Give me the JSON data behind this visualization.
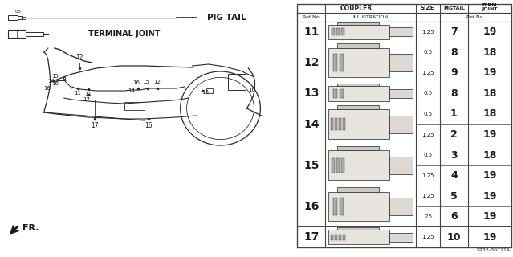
{
  "bg_color": "#ffffff",
  "pig_tail_label": "PIG TAIL",
  "terminal_joint_label": "TERMINAL JOINT",
  "fr_label": "FR.",
  "diagram_code": "S233-30721A",
  "font_color": "#1a1a1a",
  "line_color": "#2a2a2a",
  "table_line_color": "#444444",
  "groups": [
    {
      "ref": "11",
      "sub": [
        {
          "size": "1.25",
          "pig": "7",
          "term": "19"
        }
      ]
    },
    {
      "ref": "12",
      "sub": [
        {
          "size": "0.5",
          "pig": "8",
          "term": "18"
        },
        {
          "size": "1.25",
          "pig": "9",
          "term": "19"
        }
      ]
    },
    {
      "ref": "13",
      "sub": [
        {
          "size": "0.5",
          "pig": "8",
          "term": "18"
        }
      ]
    },
    {
      "ref": "14",
      "sub": [
        {
          "size": "0.5",
          "pig": "1",
          "term": "18"
        },
        {
          "size": "1.25",
          "pig": "2",
          "term": "19"
        }
      ]
    },
    {
      "ref": "15",
      "sub": [
        {
          "size": "0.5",
          "pig": "3",
          "term": "18"
        },
        {
          "size": "1.25",
          "pig": "4",
          "term": "19"
        }
      ]
    },
    {
      "ref": "16",
      "sub": [
        {
          "size": "1.25",
          "pig": "5",
          "term": "19"
        },
        {
          "size": ".25",
          "pig": "6",
          "term": "19"
        }
      ]
    },
    {
      "ref": "17",
      "sub": [
        {
          "size": "1.25",
          "pig": "10",
          "term": "19"
        }
      ]
    }
  ]
}
